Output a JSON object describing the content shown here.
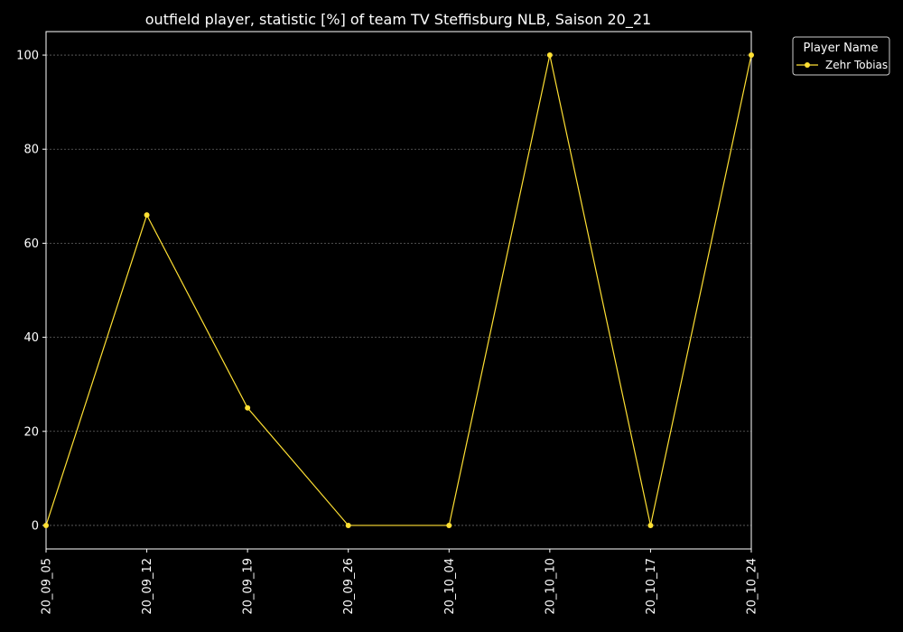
{
  "chart_data": {
    "type": "line",
    "title": "outfield player, statistic [%] of team TV Steffisburg NLB, Saison 20_21",
    "xlabel": "",
    "ylabel": "",
    "categories": [
      "20_09_05",
      "20_09_12",
      "20_09_19",
      "20_09_26",
      "20_10_04",
      "20_10_10",
      "20_10_17",
      "20_10_24"
    ],
    "series": [
      {
        "name": "Zehr Tobias",
        "values": [
          0,
          66,
          25,
          0,
          0,
          100,
          0,
          100
        ],
        "color": "#ffe033"
      }
    ],
    "ylim": [
      -5,
      105
    ],
    "yticks": [
      0,
      20,
      40,
      60,
      80,
      100
    ],
    "grid": true,
    "legend": {
      "title": "Player Name",
      "placement": "outside-top-right"
    },
    "colors": {
      "background": "#000000",
      "axes": "#ffffff",
      "grid": "#666666"
    }
  }
}
